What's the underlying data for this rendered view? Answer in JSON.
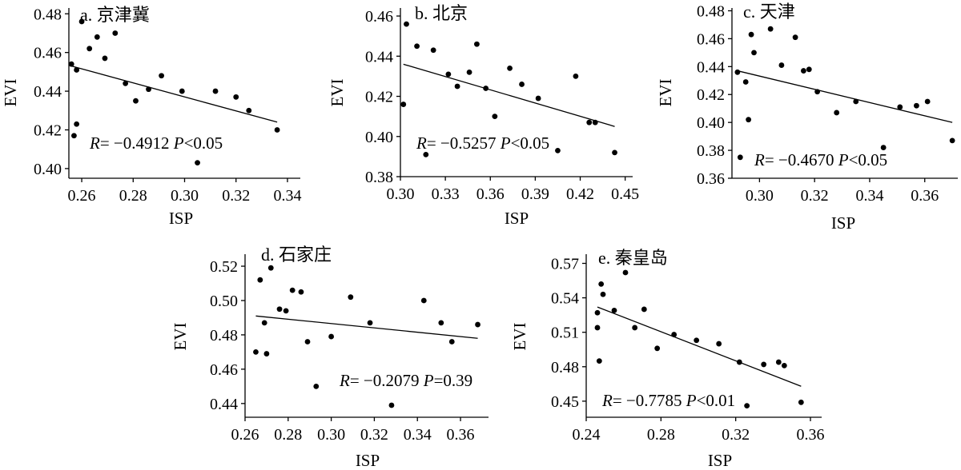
{
  "chart_data": [
    {
      "id": "a",
      "type": "scatter",
      "title": "a. 京津冀",
      "xlabel": "ISP",
      "ylabel": "EVI",
      "xlim": [
        0.255,
        0.345
      ],
      "ylim": [
        0.395,
        0.483
      ],
      "xticks": [
        "0.26",
        "0.28",
        "0.30",
        "0.32",
        "0.34"
      ],
      "xtick_values": [
        0.26,
        0.28,
        0.3,
        0.32,
        0.34
      ],
      "yticks": [
        "0.40",
        "0.42",
        "0.44",
        "0.46",
        "0.48"
      ],
      "ytick_values": [
        0.4,
        0.42,
        0.44,
        0.46,
        0.48
      ],
      "points": [
        [
          0.256,
          0.454
        ],
        [
          0.258,
          0.451
        ],
        [
          0.257,
          0.417
        ],
        [
          0.258,
          0.423
        ],
        [
          0.26,
          0.476
        ],
        [
          0.263,
          0.462
        ],
        [
          0.266,
          0.468
        ],
        [
          0.269,
          0.457
        ],
        [
          0.273,
          0.47
        ],
        [
          0.277,
          0.444
        ],
        [
          0.281,
          0.435
        ],
        [
          0.286,
          0.441
        ],
        [
          0.291,
          0.448
        ],
        [
          0.299,
          0.44
        ],
        [
          0.305,
          0.403
        ],
        [
          0.312,
          0.44
        ],
        [
          0.32,
          0.437
        ],
        [
          0.325,
          0.43
        ],
        [
          0.336,
          0.42
        ]
      ],
      "fit": [
        [
          0.256,
          0.453
        ],
        [
          0.336,
          0.424
        ]
      ],
      "stat": {
        "r_label": "R",
        "r_value": "= −0.4912 ",
        "p_label": "P",
        "p_value": "<0.05"
      }
    },
    {
      "id": "b",
      "type": "scatter",
      "title": "b. 北京",
      "xlabel": "ISP",
      "ylabel": "EVI",
      "xlim": [
        0.3,
        0.455
      ],
      "ylim": [
        0.38,
        0.464
      ],
      "xticks": [
        "0.30",
        "0.33",
        "0.36",
        "0.39",
        "0.42",
        "0.45"
      ],
      "xtick_values": [
        0.3,
        0.33,
        0.36,
        0.39,
        0.42,
        0.45
      ],
      "yticks": [
        "0.38",
        "0.40",
        "0.42",
        "0.44",
        "0.46"
      ],
      "ytick_values": [
        0.38,
        0.4,
        0.42,
        0.44,
        0.46
      ],
      "points": [
        [
          0.302,
          0.416
        ],
        [
          0.304,
          0.456
        ],
        [
          0.311,
          0.445
        ],
        [
          0.317,
          0.391
        ],
        [
          0.322,
          0.443
        ],
        [
          0.332,
          0.431
        ],
        [
          0.338,
          0.425
        ],
        [
          0.346,
          0.432
        ],
        [
          0.351,
          0.446
        ],
        [
          0.357,
          0.424
        ],
        [
          0.363,
          0.41
        ],
        [
          0.373,
          0.434
        ],
        [
          0.381,
          0.426
        ],
        [
          0.392,
          0.419
        ],
        [
          0.405,
          0.393
        ],
        [
          0.417,
          0.43
        ],
        [
          0.426,
          0.407
        ],
        [
          0.43,
          0.407
        ],
        [
          0.443,
          0.392
        ]
      ],
      "fit": [
        [
          0.302,
          0.436
        ],
        [
          0.443,
          0.405
        ]
      ],
      "stat": {
        "r_label": "R",
        "r_value": "= −0.5257 ",
        "p_label": "P",
        "p_value": "<0.05"
      }
    },
    {
      "id": "c",
      "type": "scatter",
      "title": "c. 天津",
      "xlabel": "ISP",
      "ylabel": "EVI",
      "xlim": [
        0.29,
        0.372
      ],
      "ylim": [
        0.36,
        0.482
      ],
      "xticks": [
        "0.30",
        "0.32",
        "0.34",
        "0.36"
      ],
      "xtick_values": [
        0.3,
        0.32,
        0.34,
        0.36
      ],
      "yticks": [
        "0.36",
        "0.38",
        "0.40",
        "0.42",
        "0.44",
        "0.46",
        "0.48"
      ],
      "ytick_values": [
        0.36,
        0.38,
        0.4,
        0.42,
        0.44,
        0.46,
        0.48
      ],
      "points": [
        [
          0.292,
          0.436
        ],
        [
          0.293,
          0.375
        ],
        [
          0.295,
          0.429
        ],
        [
          0.296,
          0.402
        ],
        [
          0.297,
          0.463
        ],
        [
          0.298,
          0.45
        ],
        [
          0.304,
          0.467
        ],
        [
          0.308,
          0.441
        ],
        [
          0.313,
          0.461
        ],
        [
          0.316,
          0.437
        ],
        [
          0.318,
          0.438
        ],
        [
          0.321,
          0.422
        ],
        [
          0.328,
          0.407
        ],
        [
          0.335,
          0.415
        ],
        [
          0.345,
          0.382
        ],
        [
          0.351,
          0.411
        ],
        [
          0.357,
          0.412
        ],
        [
          0.361,
          0.415
        ],
        [
          0.37,
          0.387
        ]
      ],
      "fit": [
        [
          0.292,
          0.437
        ],
        [
          0.37,
          0.4
        ]
      ],
      "stat": {
        "r_label": "R",
        "r_value": "= −0.4670 ",
        "p_label": "P",
        "p_value": "<0.05"
      }
    },
    {
      "id": "d",
      "type": "scatter",
      "title": "d. 石家庄",
      "xlabel": "ISP",
      "ylabel": "EVI",
      "xlim": [
        0.26,
        0.373
      ],
      "ylim": [
        0.432,
        0.527
      ],
      "xticks": [
        "0.26",
        "0.28",
        "0.30",
        "0.32",
        "0.34",
        "0.36"
      ],
      "xtick_values": [
        0.26,
        0.28,
        0.3,
        0.32,
        0.34,
        0.36
      ],
      "yticks": [
        "0.44",
        "0.46",
        "0.48",
        "0.50",
        "0.52"
      ],
      "ytick_values": [
        0.44,
        0.46,
        0.48,
        0.5,
        0.52
      ],
      "points": [
        [
          0.265,
          0.47
        ],
        [
          0.267,
          0.512
        ],
        [
          0.269,
          0.487
        ],
        [
          0.27,
          0.469
        ],
        [
          0.272,
          0.519
        ],
        [
          0.276,
          0.495
        ],
        [
          0.279,
          0.494
        ],
        [
          0.282,
          0.506
        ],
        [
          0.286,
          0.505
        ],
        [
          0.289,
          0.476
        ],
        [
          0.293,
          0.45
        ],
        [
          0.3,
          0.479
        ],
        [
          0.309,
          0.502
        ],
        [
          0.318,
          0.487
        ],
        [
          0.328,
          0.439
        ],
        [
          0.343,
          0.5
        ],
        [
          0.351,
          0.487
        ],
        [
          0.356,
          0.476
        ],
        [
          0.368,
          0.486
        ]
      ],
      "fit": [
        [
          0.265,
          0.491
        ],
        [
          0.368,
          0.478
        ]
      ],
      "stat": {
        "r_label": "R",
        "r_value": "= −0.2079 ",
        "p_label": "P",
        "p_value": "=0.39"
      }
    },
    {
      "id": "e",
      "type": "scatter",
      "title": "e. 秦皇岛",
      "xlabel": "ISP",
      "ylabel": "EVI",
      "xlim": [
        0.24,
        0.366
      ],
      "ylim": [
        0.436,
        0.578
      ],
      "xticks": [
        "0.24",
        "0.28",
        "0.32",
        "0.36"
      ],
      "xtick_values": [
        0.24,
        0.28,
        0.32,
        0.36
      ],
      "yticks": [
        "0.45",
        "0.48",
        "0.51",
        "0.54",
        "0.57"
      ],
      "ytick_values": [
        0.45,
        0.48,
        0.51,
        0.54,
        0.57
      ],
      "points": [
        [
          0.246,
          0.527
        ],
        [
          0.246,
          0.514
        ],
        [
          0.247,
          0.485
        ],
        [
          0.248,
          0.552
        ],
        [
          0.249,
          0.543
        ],
        [
          0.255,
          0.529
        ],
        [
          0.261,
          0.562
        ],
        [
          0.266,
          0.514
        ],
        [
          0.271,
          0.53
        ],
        [
          0.278,
          0.496
        ],
        [
          0.287,
          0.508
        ],
        [
          0.299,
          0.503
        ],
        [
          0.311,
          0.5
        ],
        [
          0.322,
          0.484
        ],
        [
          0.326,
          0.446
        ],
        [
          0.335,
          0.482
        ],
        [
          0.343,
          0.484
        ],
        [
          0.346,
          0.481
        ],
        [
          0.355,
          0.449
        ]
      ],
      "fit": [
        [
          0.246,
          0.532
        ],
        [
          0.355,
          0.463
        ]
      ],
      "stat": {
        "r_label": "R",
        "r_value": "= −0.7785 ",
        "p_label": "P",
        "p_value": "<0.01"
      }
    }
  ]
}
